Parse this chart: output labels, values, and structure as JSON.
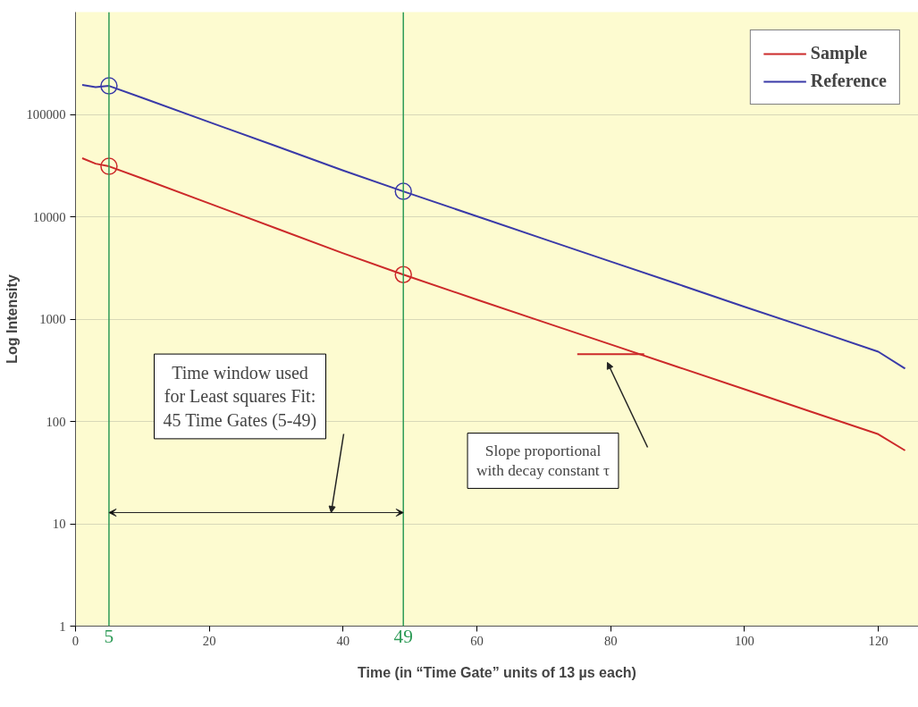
{
  "chart_data": {
    "type": "line",
    "xlabel": "Time (in “Time Gate” units of 13 µs each)",
    "ylabel": "Log Intensity",
    "xlim": [
      0,
      126
    ],
    "xticks": [
      0,
      20,
      40,
      60,
      80,
      100,
      120
    ],
    "ylim": [
      1,
      1000000
    ],
    "yticks": [
      1,
      10,
      100,
      1000,
      10000,
      100000
    ],
    "log": "y",
    "grid": "y",
    "legend": "top right",
    "marker": "none",
    "line_style": "solid",
    "series": [
      {
        "name": "Sample",
        "color": "#cc2a2a",
        "x": [
          1,
          3,
          5,
          10,
          20,
          30,
          40,
          49,
          60,
          70,
          80,
          90,
          100,
          110,
          120,
          124
        ],
        "values": [
          37300,
          33000,
          31100,
          23600,
          13500,
          7700,
          4400,
          2720,
          1550,
          935,
          565,
          341,
          206,
          124,
          75,
          52
        ]
      },
      {
        "name": "Reference",
        "color": "#3a3aa8",
        "x": [
          1,
          3,
          5,
          10,
          20,
          30,
          40,
          49,
          60,
          70,
          80,
          90,
          100,
          110,
          120,
          124
        ],
        "values": [
          194000,
          185000,
          190000,
          145000,
          84000,
          49000,
          28300,
          17700,
          10100,
          6070,
          3650,
          2200,
          1320,
          800,
          480,
          329
        ]
      },
      {
        "type": "scatter",
        "marker": "circle",
        "color": "#cc2a2a",
        "x": [
          5,
          49
        ],
        "values": [
          31100,
          2720
        ]
      },
      {
        "type": "line",
        "color": "#cc2a2a",
        "x": [
          75,
          85
        ],
        "values": [
          454,
          454
        ]
      },
      {
        "type": "scatter",
        "marker": "circle",
        "color": "#3a3aa8",
        "x": [
          5,
          49
        ],
        "values": [
          190000,
          17700
        ]
      }
    ],
    "ref_lines": [
      {
        "axis": "x",
        "value": 5,
        "label": "5",
        "color": "#2e9b57"
      },
      {
        "axis": "x",
        "value": 49,
        "label": "49",
        "color": "#2e9b57"
      }
    ],
    "annotations": [
      "Time window used\nfor Least squares Fit:\n45 Time Gates (5-49)",
      "Slope proportional\nwith decay constant τ"
    ]
  }
}
